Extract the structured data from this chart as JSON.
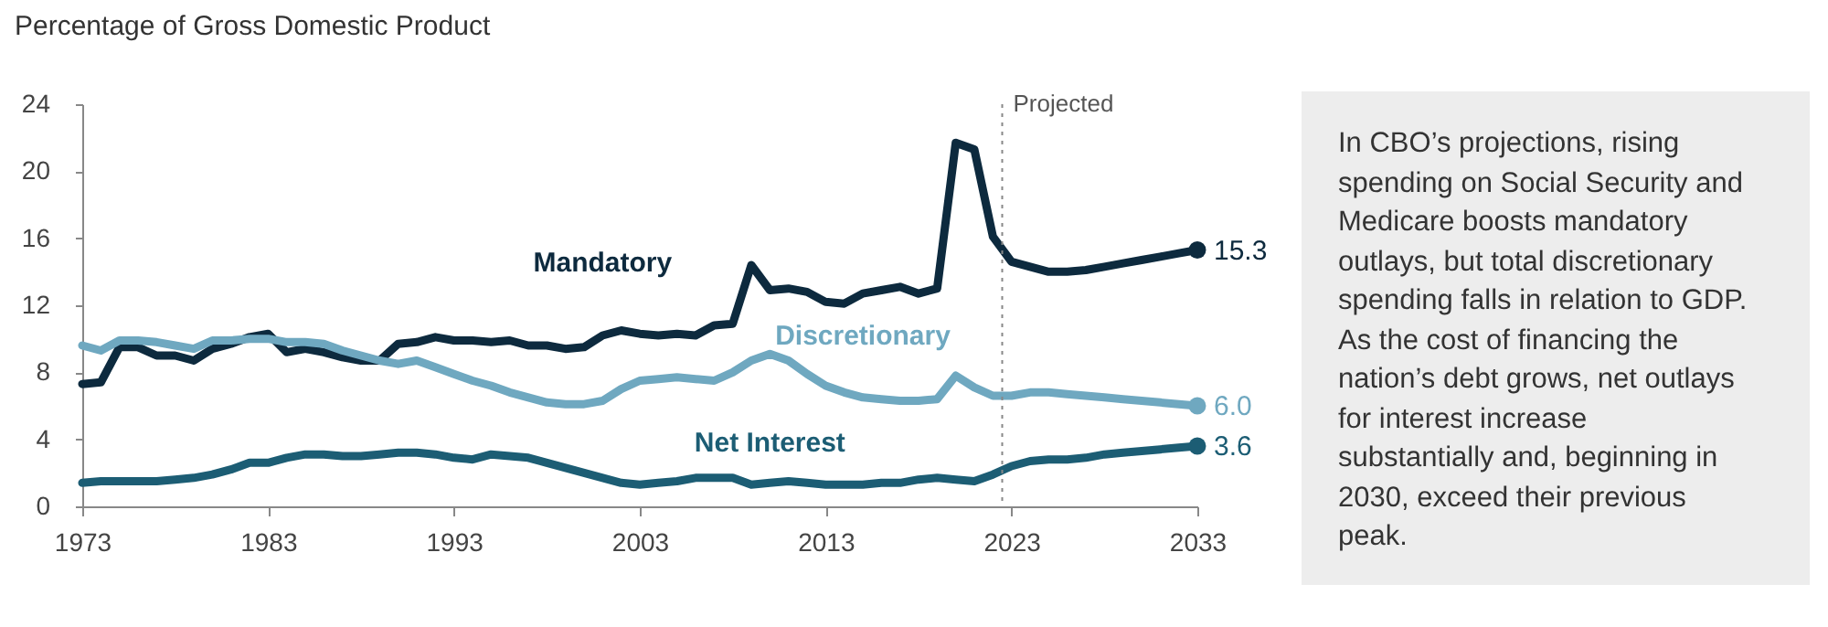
{
  "chart_data": {
    "type": "line",
    "title": "Percentage of Gross Domestic Product",
    "x": [
      1973,
      1974,
      1975,
      1976,
      1977,
      1978,
      1979,
      1980,
      1981,
      1982,
      1983,
      1984,
      1985,
      1986,
      1987,
      1988,
      1989,
      1990,
      1991,
      1992,
      1993,
      1994,
      1995,
      1996,
      1997,
      1998,
      1999,
      2000,
      2001,
      2002,
      2003,
      2004,
      2005,
      2006,
      2007,
      2008,
      2009,
      2010,
      2011,
      2012,
      2013,
      2014,
      2015,
      2016,
      2017,
      2018,
      2019,
      2020,
      2021,
      2022,
      2023,
      2024,
      2025,
      2026,
      2027,
      2028,
      2029,
      2030,
      2031,
      2032,
      2033
    ],
    "series": [
      {
        "name": "Mandatory",
        "color": "#0d2a3e",
        "values": [
          7.3,
          7.4,
          9.5,
          9.5,
          9.0,
          9.0,
          8.7,
          9.4,
          9.7,
          10.1,
          10.3,
          9.2,
          9.4,
          9.2,
          8.9,
          8.7,
          8.7,
          9.7,
          9.8,
          10.1,
          9.9,
          9.9,
          9.8,
          9.9,
          9.6,
          9.6,
          9.4,
          9.5,
          10.2,
          10.5,
          10.3,
          10.2,
          10.3,
          10.2,
          10.8,
          10.9,
          14.4,
          12.9,
          13.0,
          12.8,
          12.2,
          12.1,
          12.7,
          12.9,
          13.1,
          12.7,
          13.0,
          21.7,
          21.3,
          16.1,
          14.6,
          14.3,
          14.0,
          14.0,
          14.1,
          14.3,
          14.5,
          14.7,
          14.9,
          15.1,
          15.3
        ],
        "value_labels": [
          null,
          null,
          null,
          null,
          null,
          null,
          null,
          null,
          null,
          null,
          null,
          null,
          null,
          null,
          null,
          null,
          null,
          null,
          null,
          null,
          null,
          null,
          null,
          null,
          null,
          null,
          null,
          null,
          null,
          null,
          null,
          null,
          null,
          null,
          null,
          null,
          null,
          null,
          null,
          null,
          null,
          null,
          null,
          null,
          null,
          null,
          null,
          null,
          null,
          null,
          null,
          null,
          null,
          null,
          null,
          null,
          null,
          null,
          null,
          null,
          "15.3"
        ]
      },
      {
        "name": "Discretionary",
        "color": "#6fa8c0",
        "values": [
          9.6,
          9.3,
          9.9,
          9.9,
          9.8,
          9.6,
          9.4,
          9.9,
          9.9,
          10.0,
          10.0,
          9.8,
          9.8,
          9.7,
          9.3,
          9.0,
          8.7,
          8.5,
          8.7,
          8.3,
          7.9,
          7.5,
          7.2,
          6.8,
          6.5,
          6.2,
          6.1,
          6.1,
          6.3,
          7.0,
          7.5,
          7.6,
          7.7,
          7.6,
          7.5,
          8.0,
          8.7,
          9.1,
          8.7,
          7.9,
          7.2,
          6.8,
          6.5,
          6.4,
          6.3,
          6.3,
          6.4,
          7.8,
          7.1,
          6.6,
          6.6,
          6.8,
          6.8,
          6.7,
          6.6,
          6.5,
          6.4,
          6.3,
          6.2,
          6.1,
          6.0
        ],
        "value_labels": [
          null,
          null,
          null,
          null,
          null,
          null,
          null,
          null,
          null,
          null,
          null,
          null,
          null,
          null,
          null,
          null,
          null,
          null,
          null,
          null,
          null,
          null,
          null,
          null,
          null,
          null,
          null,
          null,
          null,
          null,
          null,
          null,
          null,
          null,
          null,
          null,
          null,
          null,
          null,
          null,
          null,
          null,
          null,
          null,
          null,
          null,
          null,
          null,
          null,
          null,
          null,
          null,
          null,
          null,
          null,
          null,
          null,
          null,
          null,
          null,
          "6.0"
        ]
      },
      {
        "name": "Net Interest",
        "color": "#1c5d74",
        "values": [
          1.4,
          1.5,
          1.5,
          1.5,
          1.5,
          1.6,
          1.7,
          1.9,
          2.2,
          2.6,
          2.6,
          2.9,
          3.1,
          3.1,
          3.0,
          3.0,
          3.1,
          3.2,
          3.2,
          3.1,
          2.9,
          2.8,
          3.1,
          3.0,
          2.9,
          2.6,
          2.3,
          2.0,
          1.7,
          1.4,
          1.3,
          1.4,
          1.5,
          1.7,
          1.7,
          1.7,
          1.3,
          1.4,
          1.5,
          1.4,
          1.3,
          1.3,
          1.3,
          1.4,
          1.4,
          1.6,
          1.7,
          1.6,
          1.5,
          1.9,
          2.4,
          2.7,
          2.8,
          2.8,
          2.9,
          3.1,
          3.2,
          3.3,
          3.4,
          3.5,
          3.6
        ],
        "value_labels": [
          null,
          null,
          null,
          null,
          null,
          null,
          null,
          null,
          null,
          null,
          null,
          null,
          null,
          null,
          null,
          null,
          null,
          null,
          null,
          null,
          null,
          null,
          null,
          null,
          null,
          null,
          null,
          null,
          null,
          null,
          null,
          null,
          null,
          null,
          null,
          null,
          null,
          null,
          null,
          null,
          null,
          null,
          null,
          null,
          null,
          null,
          null,
          null,
          null,
          null,
          null,
          null,
          null,
          null,
          null,
          null,
          null,
          null,
          null,
          null,
          "3.6"
        ]
      }
    ],
    "xlim": [
      1973,
      2033
    ],
    "xticks": [
      1973,
      1983,
      1993,
      2003,
      2013,
      2023,
      2033
    ],
    "ylim": [
      0,
      24
    ],
    "yticks": [
      0,
      4,
      8,
      12,
      16,
      20,
      24
    ],
    "grid": false,
    "line_style": "solid",
    "ref_lines": [
      {
        "axis": "x",
        "value": 2022.5,
        "label": "Projected",
        "color": "#888888",
        "line_style": "dotted"
      }
    ],
    "annotations": [
      "In CBO’s projections, rising spending on Social Security and Medicare boosts mandatory outlays, but total discretionary spending falls in relation to GDP. As the cost of financing the nation’s debt grows, net outlays for interest increase substantially and, beginning in 2030, exceed their previous peak."
    ]
  }
}
